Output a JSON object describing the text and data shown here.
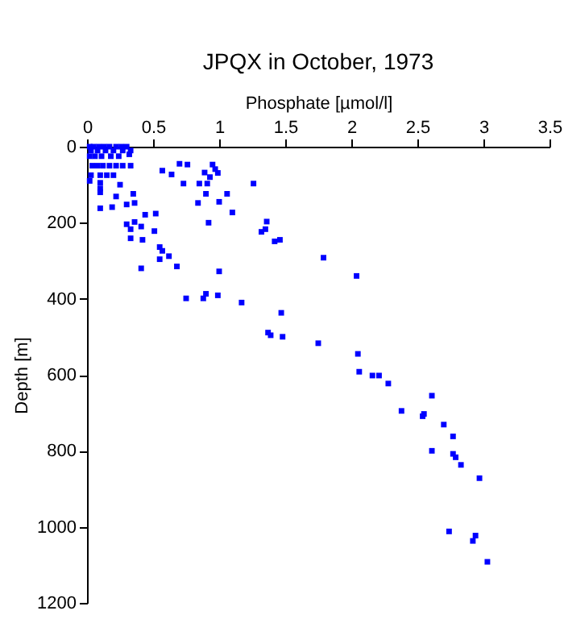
{
  "chart_data": {
    "type": "scatter",
    "title": "JPQX in October, 1973",
    "xlabel": "Phosphate [µmol/l]",
    "ylabel": "Depth [m]",
    "xlim": [
      0,
      3.5
    ],
    "xticks": [
      0,
      0.5,
      1,
      1.5,
      2,
      2.5,
      3,
      3.5
    ],
    "ylim": [
      1200,
      0
    ],
    "yticks": [
      0,
      200,
      400,
      600,
      800,
      1000,
      1200
    ],
    "grid": false,
    "legend": false,
    "marker": "square",
    "series": [
      {
        "color": "#0000ff",
        "x": [
          0.02,
          0.05,
          0.09,
          0.13,
          0.17,
          0.22,
          0.26,
          0.3,
          0.03,
          0.08,
          0.14,
          0.2,
          0.27,
          0.33,
          0.02,
          0.06,
          0.11,
          0.18,
          0.24,
          0.32,
          0.04,
          0.08,
          0.12,
          0.17,
          0.22,
          0.27,
          0.33,
          0.03,
          0.1,
          0.15,
          0.2,
          0.02,
          0.1,
          0.1,
          0.1,
          0.25,
          0.7,
          0.76,
          0.57,
          0.64,
          0.73,
          0.95,
          0.97,
          0.99,
          0.89,
          0.93,
          0.85,
          0.91,
          0.9,
          1.06,
          0.84,
          1.0,
          1.26,
          1.1,
          0.92,
          1.36,
          1.32,
          1.35,
          1.42,
          1.46,
          0.35,
          0.36,
          0.3,
          0.22,
          0.19,
          0.1,
          0.3,
          0.36,
          0.33,
          0.41,
          0.44,
          0.52,
          0.51,
          0.33,
          0.42,
          0.55,
          0.57,
          0.55,
          0.62,
          0.68,
          0.41,
          1.0,
          0.75,
          0.88,
          0.9,
          0.99,
          1.17,
          1.37,
          1.39,
          1.47,
          1.48,
          1.75,
          2.04,
          2.05,
          2.06,
          2.16,
          2.21,
          1.79,
          2.28,
          2.61,
          2.38,
          2.54,
          2.55,
          2.7,
          2.77,
          2.61,
          2.77,
          2.79,
          2.83,
          2.97,
          2.74,
          2.94,
          2.92,
          3.03
        ],
        "values": [
          0,
          0,
          0,
          0,
          0,
          0,
          0,
          0,
          10,
          10,
          10,
          10,
          10,
          10,
          25,
          25,
          25,
          25,
          25,
          20,
          50,
          50,
          50,
          50,
          50,
          50,
          50,
          75,
          75,
          75,
          75,
          90,
          95,
          110,
          120,
          100,
          45,
          47,
          63,
          73,
          97,
          47,
          59,
          69,
          68,
          80,
          97,
          97,
          124,
          124,
          148,
          145,
          97,
          173,
          200,
          197,
          224,
          217,
          249,
          245,
          124,
          148,
          152,
          131,
          159,
          162,
          204,
          198,
          217,
          210,
          179,
          176,
          222,
          241,
          245,
          264,
          274,
          296,
          288,
          315,
          320,
          328,
          399,
          399,
          387,
          391,
          410,
          489,
          496,
          437,
          500,
          517,
          340,
          545,
          592,
          602,
          602,
          292,
          623,
          655,
          695,
          709,
          703,
          731,
          762,
          800,
          808,
          817,
          837,
          872,
          1012,
          1023,
          1037,
          1092
        ]
      }
    ]
  }
}
